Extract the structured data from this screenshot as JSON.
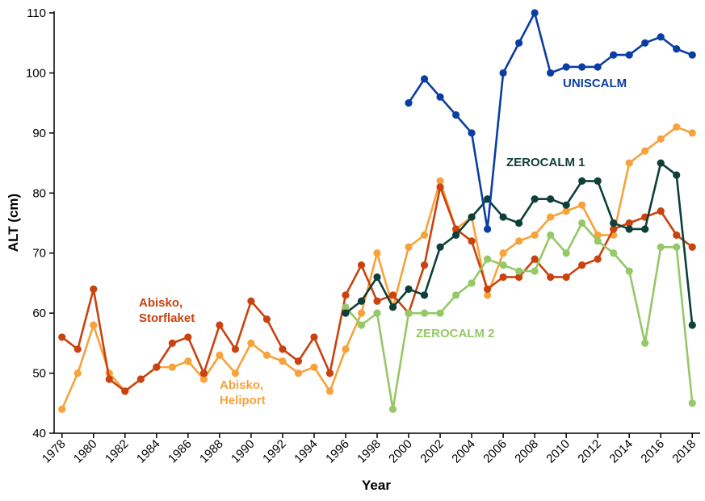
{
  "chart_data": {
    "type": "line",
    "x_label": "Year",
    "y_label": "ALT (cm)",
    "x": [
      1978,
      1979,
      1980,
      1981,
      1982,
      1983,
      1984,
      1985,
      1986,
      1987,
      1988,
      1989,
      1990,
      1991,
      1992,
      1993,
      1994,
      1995,
      1996,
      1997,
      1998,
      1999,
      2000,
      2001,
      2002,
      2003,
      2004,
      2005,
      2006,
      2007,
      2008,
      2009,
      2010,
      2011,
      2012,
      2013,
      2014,
      2015,
      2016,
      2017,
      2018
    ],
    "xlim": [
      1977.5,
      2018.5
    ],
    "xticks": [
      1978,
      1980,
      1982,
      1984,
      1986,
      1988,
      1990,
      1992,
      1994,
      1996,
      1998,
      2000,
      2002,
      2004,
      2006,
      2008,
      2010,
      2012,
      2014,
      2016,
      2018
    ],
    "ylim": [
      40,
      110
    ],
    "yticks": [
      40,
      50,
      60,
      70,
      80,
      90,
      100,
      110
    ],
    "series": [
      {
        "name": "Abisko, Heliport",
        "color": "#f7a23b",
        "values": [
          44,
          50,
          58,
          50,
          47,
          49,
          51,
          51,
          52,
          49,
          53,
          50,
          55,
          53,
          52,
          50,
          51,
          47,
          54,
          60,
          70,
          61,
          71,
          73,
          82,
          74,
          76,
          63,
          70,
          72,
          73,
          76,
          77,
          78,
          73,
          73,
          85,
          87,
          89,
          91,
          90
        ]
      },
      {
        "name": "Abisko, Storflaket",
        "color": "#c9420f",
        "values": [
          56,
          54,
          64,
          49,
          47,
          49,
          51,
          55,
          56,
          50,
          58,
          54,
          62,
          59,
          54,
          52,
          56,
          50,
          63,
          68,
          62,
          63,
          60,
          68,
          81,
          74,
          72,
          64,
          66,
          66,
          69,
          66,
          66,
          68,
          69,
          74,
          75,
          76,
          77,
          73,
          71
        ]
      },
      {
        "name": "ZEROCALM 2",
        "color": "#95c867",
        "values": [
          null,
          null,
          null,
          null,
          null,
          null,
          null,
          null,
          null,
          null,
          null,
          null,
          null,
          null,
          null,
          null,
          null,
          null,
          61,
          58,
          60,
          44,
          60,
          60,
          60,
          63,
          65,
          69,
          68,
          67,
          67,
          73,
          70,
          75,
          72,
          70,
          67,
          55,
          71,
          71,
          45
        ]
      },
      {
        "name": "ZEROCALM 1",
        "color": "#0e3f38",
        "values": [
          null,
          null,
          null,
          null,
          null,
          null,
          null,
          null,
          null,
          null,
          null,
          null,
          null,
          null,
          null,
          null,
          null,
          null,
          60,
          62,
          66,
          61,
          64,
          63,
          71,
          73,
          76,
          79,
          76,
          75,
          79,
          79,
          78,
          82,
          82,
          75,
          74,
          74,
          85,
          83,
          58
        ]
      },
      {
        "name": "UNISCALM",
        "color": "#0b3da3",
        "values": [
          null,
          null,
          null,
          null,
          null,
          null,
          null,
          null,
          null,
          null,
          null,
          null,
          null,
          null,
          null,
          null,
          null,
          null,
          null,
          null,
          null,
          null,
          95,
          99,
          96,
          93,
          90,
          74,
          100,
          105,
          110,
          100,
          101,
          101,
          101,
          103,
          103,
          105,
          106,
          104,
          103
        ]
      }
    ]
  }
}
